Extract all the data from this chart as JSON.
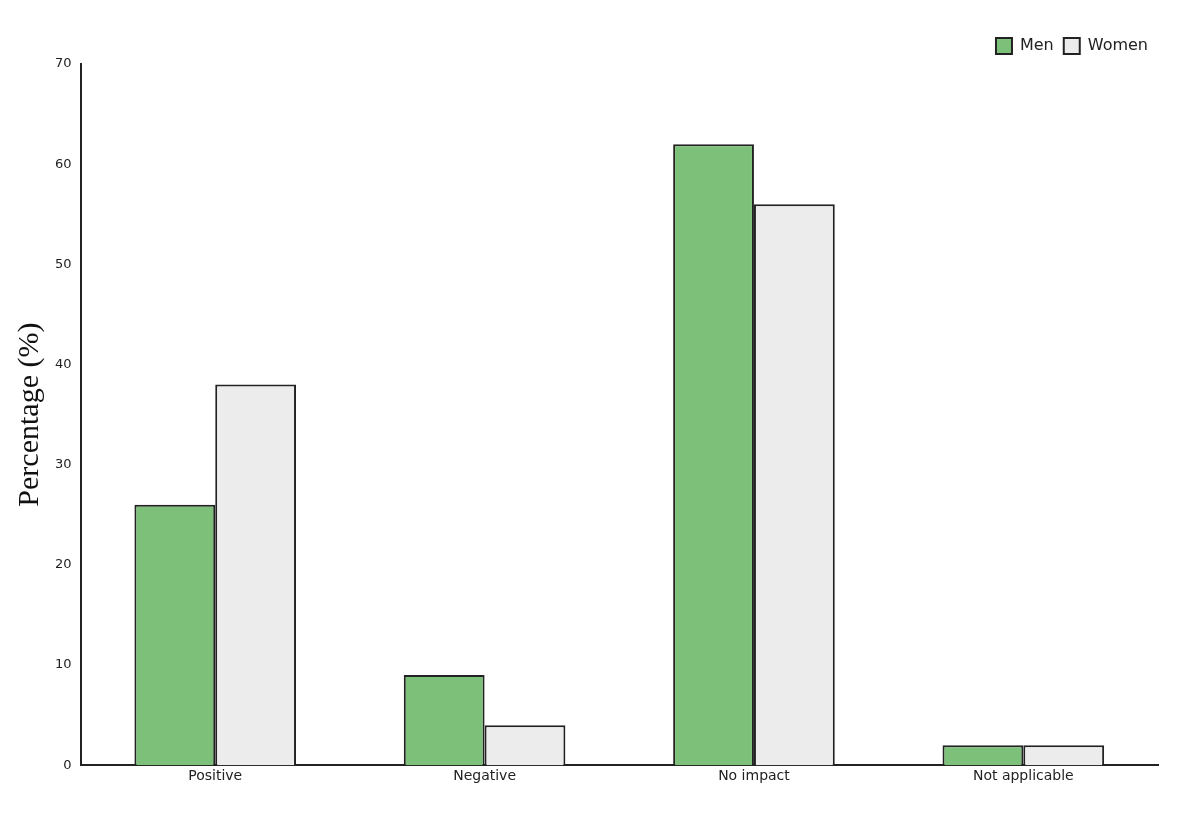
{
  "chart_data": {
    "type": "bar",
    "ylabel": "Percentage (%)",
    "categories": [
      "Positive",
      "Negative",
      "No impact",
      "Not applicable"
    ],
    "series": [
      {
        "name": "Men",
        "color": "#7cc07a",
        "values": [
          26,
          9,
          62,
          2
        ]
      },
      {
        "name": "Women",
        "color": "#ececec",
        "values": [
          38,
          4,
          56,
          2
        ]
      }
    ],
    "ylim": [
      0,
      70
    ],
    "yticks": [
      0,
      10,
      20,
      30,
      40,
      50,
      60,
      70
    ],
    "grid": false,
    "legend": "top right"
  }
}
